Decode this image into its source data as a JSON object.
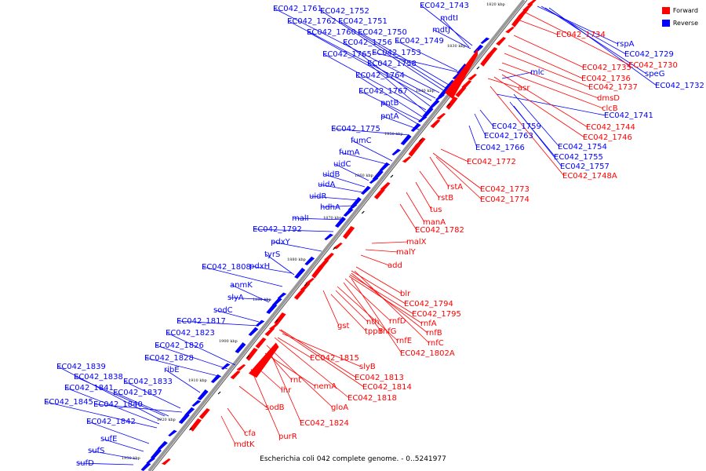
{
  "caption": "Escherichia coli 042 complete genome. - 0..5241977",
  "colors": {
    "forward": "#ff0000",
    "reverse": "#0000ff",
    "backbone": "#999999"
  },
  "legend": [
    {
      "label": "Forward",
      "color": "#ff0000"
    },
    {
      "label": "Reverse",
      "color": "#0000ff"
    }
  ],
  "ticks": [
    "1820 kbp",
    "1830 kbp",
    "1840 kbp",
    "1850 kbp",
    "1860 kbp",
    "1870 kbp",
    "1880 kbp",
    "1890 kbp",
    "1900 kbp",
    "1910 kbp",
    "1920 kbp",
    "1930 kbp"
  ],
  "reverse_labels": [
    "EC042_1761",
    "EC042_1752",
    "EC042_1743",
    "EC042_1762",
    "EC042_1751",
    "mdtI",
    "EC042_1760",
    "EC042_1750",
    "mdtJ",
    "EC042_1756",
    "EC042_1749",
    "EC042_1765",
    "EC042_1753",
    "EC042_1758",
    "EC042_1764",
    "EC042_1767",
    "pntB",
    "pntA",
    "EC042_1775",
    "fumC",
    "fumA",
    "uidC",
    "uidB",
    "uidA",
    "uidR",
    "hdhA",
    "malI",
    "EC042_1792",
    "pdxY",
    "tyrS",
    "EC042_1808",
    "pdxH",
    "anmK",
    "slyA",
    "sodC",
    "EC042_1817",
    "EC042_1823",
    "EC042_1826",
    "EC042_1828",
    "ribE",
    "EC042_1839",
    "EC042_1838",
    "EC042_1833",
    "EC042_1841",
    "EC042_1837",
    "EC042_1845",
    "EC042_1840",
    "EC042_1842",
    "sufE",
    "sufS",
    "sufD",
    "rspA",
    "EC042_1729",
    "speG",
    "EC042_1732",
    "mlc",
    "EC042_1741",
    "EC042_1759",
    "EC042_1763",
    "EC042_1754",
    "EC042_1766",
    "EC042_1755",
    "EC042_1757"
  ],
  "forward_labels": [
    "EC042_1734",
    "EC042_1730",
    "EC042_1735",
    "EC042_1736",
    "EC042_1737",
    "asr",
    "dmsD",
    "clcB",
    "EC042_1744",
    "EC042_1746",
    "EC042_1748A",
    "EC042_1772",
    "rstA",
    "EC042_1773",
    "rstB",
    "EC042_1774",
    "tus",
    "manA",
    "EC042_1782",
    "malX",
    "malY",
    "add",
    "blr",
    "EC042_1794",
    "EC042_1795",
    "rnfD",
    "rnfA",
    "nth",
    "rnfG",
    "rnfB",
    "gst",
    "tppB",
    "rnfE",
    "rnfC",
    "EC042_1802A",
    "EC042_1815",
    "slyB",
    "EC042_1813",
    "rnt",
    "EC042_1814",
    "nemA",
    "lhr",
    "EC042_1818",
    "gloA",
    "sodB",
    "EC042_1824",
    "cfa",
    "purR",
    "mdtK"
  ]
}
